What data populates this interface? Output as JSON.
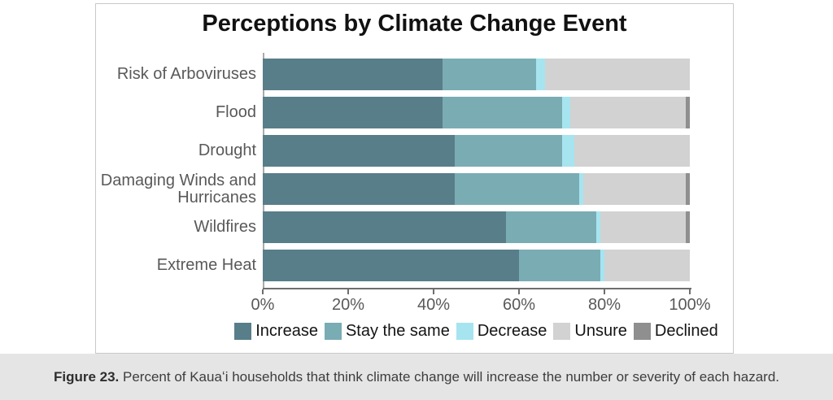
{
  "title": "Perceptions by Climate Change Event",
  "caption": {
    "label": "Figure 23.",
    "text": " Percent of Kauaʻi households that think climate change will increase the number or severity of each hazard."
  },
  "chart_data": {
    "type": "bar",
    "orientation": "horizontal",
    "stacked": true,
    "title": "Perceptions by Climate Change Event",
    "categories": [
      "Risk of Arboviruses",
      "Flood",
      "Drought",
      "Damaging Winds and Hurricanes",
      "Wildfires",
      "Extreme Heat"
    ],
    "series": [
      {
        "name": "Increase",
        "color": "#587e89",
        "values": [
          42,
          42,
          45,
          45,
          57,
          60
        ]
      },
      {
        "name": "Stay the same",
        "color": "#7aacb4",
        "values": [
          22,
          28,
          25,
          29,
          21,
          19
        ]
      },
      {
        "name": "Decrease",
        "color": "#a6e4f0",
        "values": [
          2,
          2,
          3,
          1,
          1,
          1
        ]
      },
      {
        "name": "Unsure",
        "color": "#d2d2d2",
        "values": [
          34,
          27,
          27,
          24,
          20,
          20
        ]
      },
      {
        "name": "Declined",
        "color": "#8f8f8f",
        "values": [
          0,
          1,
          0,
          1,
          1,
          0
        ]
      }
    ],
    "x_ticks": [
      "0%",
      "20%",
      "40%",
      "60%",
      "80%",
      "100%"
    ],
    "xlim": [
      0,
      100
    ],
    "unit": "percent",
    "legend_position": "bottom",
    "grid": false
  }
}
